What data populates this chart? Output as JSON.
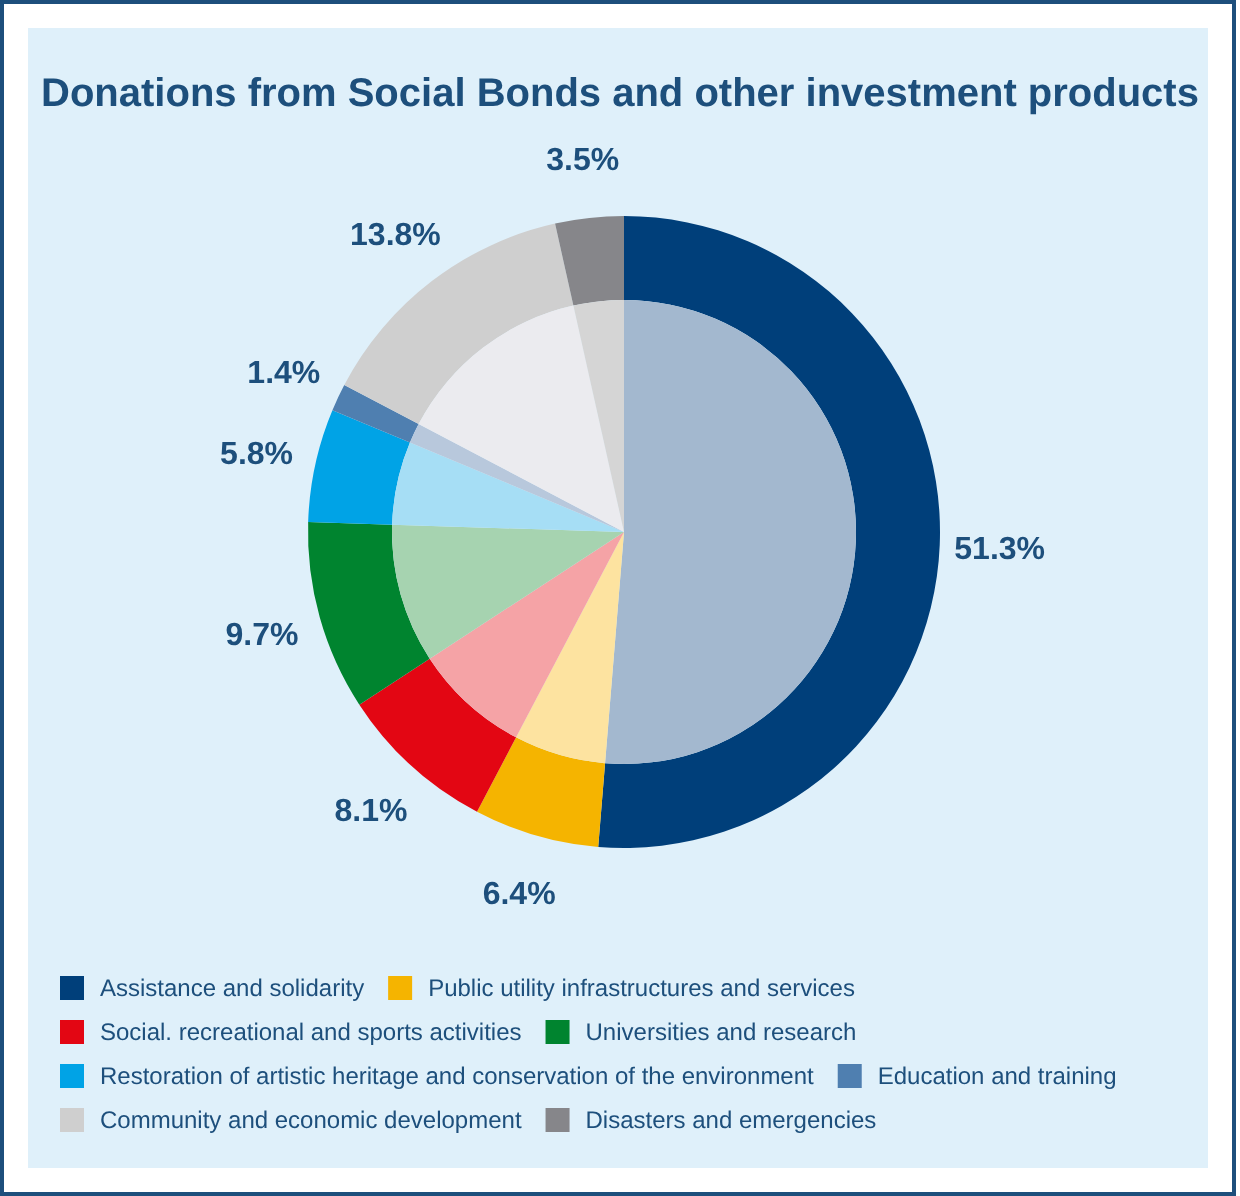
{
  "chart_data": {
    "type": "donut",
    "title": "Donations from Social Bonds and other investment products",
    "categories": [
      "Assistance and solidarity",
      "Public utility infrastructures and services",
      "Social. recreational and sports activities",
      "Universities and research",
      "Restoration of artistic heritage and conservation of the environment",
      "Education and training",
      "Community and economic development",
      "Disasters and emergencies"
    ],
    "series": [
      {
        "values": [
          51.3,
          6.4,
          8.1,
          9.7,
          5.8,
          1.4,
          13.8,
          3.5
        ],
        "colors": [
          "#003f7a",
          "#f5b400",
          "#e30613",
          "#00842f",
          "#00a3e6",
          "#4f7fb0",
          "#cfcfcf",
          "#86868a"
        ],
        "value_labels": [
          "51.3%",
          "6.4%",
          "8.1%",
          "9.7%",
          "5.8%",
          "1.4%",
          "13.8%",
          "3.5%"
        ]
      },
      {
        "type": "pie",
        "values": [
          51.3,
          6.4,
          8.1,
          9.7,
          5.8,
          1.4,
          13.8,
          3.5
        ],
        "colors": [
          "#a3b8cf",
          "#fde3a0",
          "#f5a3a6",
          "#a6d3b0",
          "#a6def5",
          "#b8c8dc",
          "#ebebef",
          "#d5d5d5"
        ]
      }
    ],
    "legend": "bottom"
  }
}
